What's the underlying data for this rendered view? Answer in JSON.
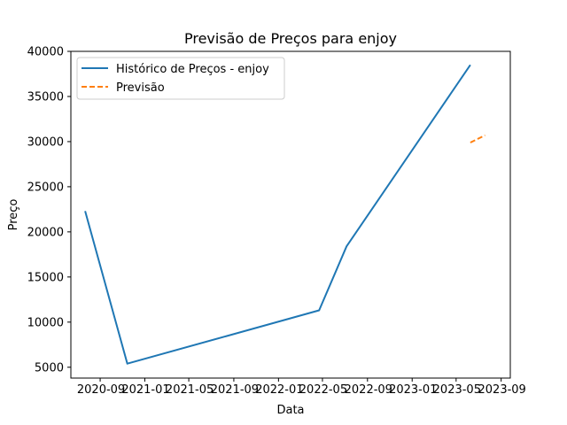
{
  "chart_data": {
    "type": "line",
    "title": "Previsão de Preços para enjoy",
    "xlabel": "Data",
    "ylabel": "Preço",
    "xlim": [
      "2020-06-13",
      "2023-09-26"
    ],
    "ylim": [
      3800,
      40000
    ],
    "xticks": [
      {
        "date": "2020-09-01",
        "label": "2020-09"
      },
      {
        "date": "2021-01-01",
        "label": "2021-01"
      },
      {
        "date": "2021-05-01",
        "label": "2021-05"
      },
      {
        "date": "2021-09-01",
        "label": "2021-09"
      },
      {
        "date": "2022-01-01",
        "label": "2022-01"
      },
      {
        "date": "2022-05-01",
        "label": "2022-05"
      },
      {
        "date": "2022-09-01",
        "label": "2022-09"
      },
      {
        "date": "2023-01-01",
        "label": "2023-01"
      },
      {
        "date": "2023-05-01",
        "label": "2023-05"
      },
      {
        "date": "2023-09-01",
        "label": "2023-09"
      }
    ],
    "yticks": [
      {
        "value": 5000,
        "label": "5000"
      },
      {
        "value": 10000,
        "label": "10000"
      },
      {
        "value": 15000,
        "label": "15000"
      },
      {
        "value": 20000,
        "label": "20000"
      },
      {
        "value": 25000,
        "label": "25000"
      },
      {
        "value": 30000,
        "label": "30000"
      },
      {
        "value": 35000,
        "label": "35000"
      },
      {
        "value": 40000,
        "label": "40000"
      }
    ],
    "grid": false,
    "legend_position": "top-left",
    "series": [
      {
        "name": "Histórico de Preços - enjoy",
        "color": "#1f77b4",
        "style": "solid",
        "x": [
          "2020-07-22",
          "2020-11-14",
          "2022-04-22",
          "2022-07-06",
          "2023-06-09"
        ],
        "y": [
          22300,
          5400,
          11300,
          18400,
          38500
        ]
      },
      {
        "name": "Previsão",
        "color": "#ff7f0e",
        "style": "dashed",
        "x": [
          "2023-06-09",
          "2023-07-19"
        ],
        "y": [
          29900,
          30700
        ]
      }
    ]
  }
}
